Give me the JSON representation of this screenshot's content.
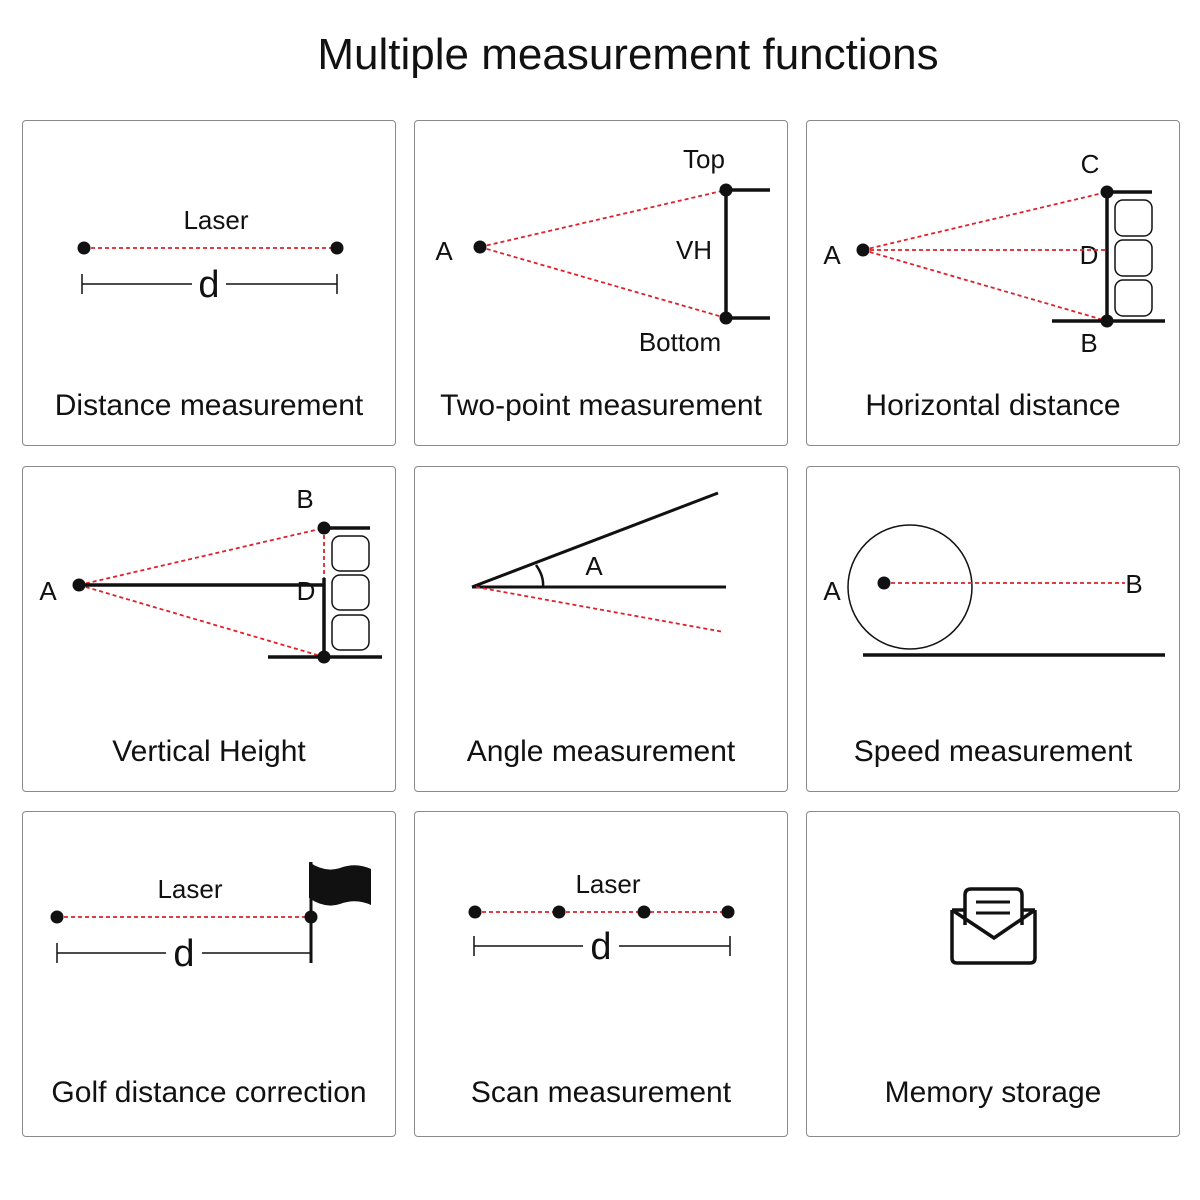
{
  "title": "Multiple measurement functions",
  "cards": [
    {
      "caption": "Distance measurement",
      "labels": {
        "laser": "Laser",
        "d": "d"
      }
    },
    {
      "caption": "Two-point measurement",
      "labels": {
        "top": "Top",
        "a": "A",
        "vh": "VH",
        "bottom": "Bottom"
      }
    },
    {
      "caption": "Horizontal distance",
      "labels": {
        "c": "C",
        "a": "A",
        "d": "D",
        "b": "B"
      }
    },
    {
      "caption": "Vertical Height",
      "labels": {
        "b": "B",
        "a": "A",
        "d": "D"
      }
    },
    {
      "caption": "Angle measurement",
      "labels": {
        "a": "A"
      }
    },
    {
      "caption": "Speed measurement",
      "labels": {
        "a": "A",
        "b": "B"
      }
    },
    {
      "caption": "Golf distance correction",
      "labels": {
        "laser": "Laser",
        "d": "d"
      }
    },
    {
      "caption": "Scan measurement",
      "labels": {
        "laser": "Laser",
        "d": "d"
      }
    },
    {
      "caption": "Memory storage",
      "icon": "envelope-letter-icon"
    }
  ],
  "colors": {
    "laser": "#e0202a",
    "ink": "#111111",
    "border": "#8a8a8a"
  }
}
